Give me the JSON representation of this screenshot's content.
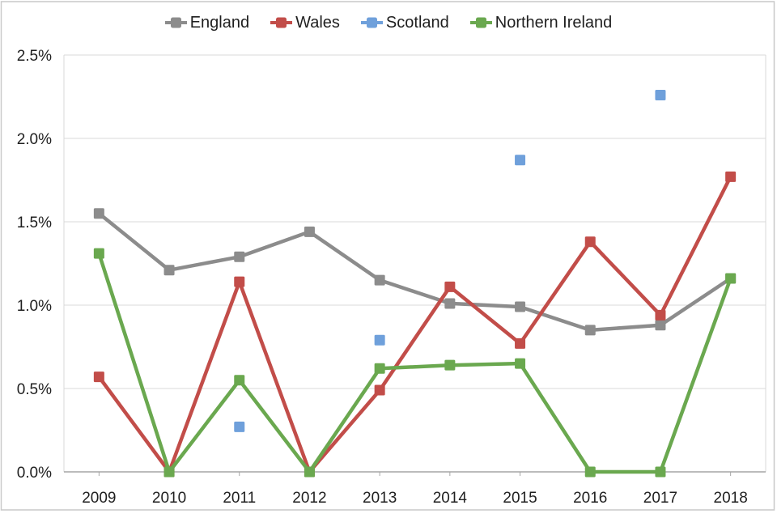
{
  "chart_data": {
    "type": "line",
    "title": "",
    "x_categories": [
      "2009",
      "2010",
      "2011",
      "2012",
      "2013",
      "2014",
      "2015",
      "2016",
      "2017",
      "2018"
    ],
    "y_ticks": [
      "0.0%",
      "0.5%",
      "1.0%",
      "1.5%",
      "2.0%",
      "2.5%"
    ],
    "ylim": [
      0,
      2.5
    ],
    "y_step": 0.5,
    "grid": "horizontal",
    "legend_position": "top",
    "marker": "square",
    "series": [
      {
        "name": "England",
        "color": "#8C8C8C",
        "values": [
          1.55,
          1.21,
          1.29,
          1.44,
          1.15,
          1.01,
          0.99,
          0.85,
          0.88,
          1.16
        ]
      },
      {
        "name": "Wales",
        "color": "#C24D49",
        "values": [
          0.57,
          0.0,
          1.14,
          0.0,
          0.49,
          1.11,
          0.77,
          1.38,
          0.94,
          1.77
        ]
      },
      {
        "name": "Scotland",
        "color": "#6FA0DB",
        "values": [
          null,
          null,
          0.27,
          null,
          0.79,
          null,
          1.87,
          null,
          2.26,
          null
        ]
      },
      {
        "name": "Northern Ireland",
        "color": "#6AA84F",
        "values": [
          1.31,
          0.0,
          0.55,
          0.0,
          0.62,
          0.64,
          0.65,
          0.0,
          0.0,
          1.16
        ]
      }
    ],
    "draw_order": [
      "England",
      "Scotland",
      "Wales",
      "Northern Ireland"
    ]
  },
  "style": {
    "grid_color": "#D9D9D9",
    "axis_color": "#A6A6A6",
    "text_color": "#1f1f1f",
    "frame_color": "#C9C9C9",
    "background": "#ffffff"
  }
}
